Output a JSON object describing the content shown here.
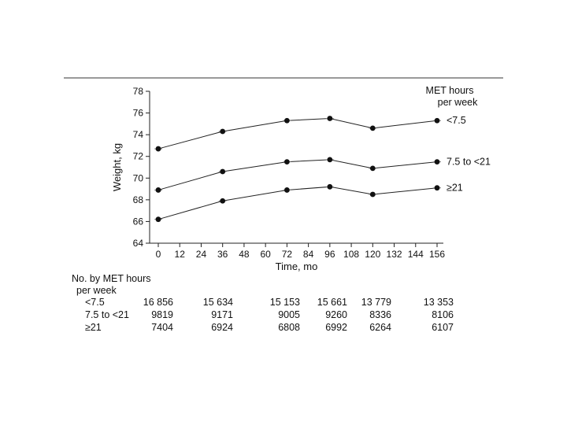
{
  "chart_data": {
    "type": "line",
    "xlabel": "Time, mo",
    "ylabel": "Weight, kg",
    "xlim": [
      0,
      156
    ],
    "ylim": [
      64,
      78
    ],
    "x_ticks": [
      "0",
      "12",
      "24",
      "36",
      "48",
      "60",
      "72",
      "84",
      "96",
      "108",
      "120",
      "132",
      "144",
      "156"
    ],
    "y_ticks": [
      "64",
      "66",
      "68",
      "70",
      "72",
      "74",
      "76",
      "78"
    ],
    "x": [
      0,
      36,
      72,
      96,
      120,
      156
    ],
    "legend_title": [
      "MET hours",
      "per week"
    ],
    "grid": false,
    "series": [
      {
        "name": "<7.5",
        "values": [
          72.7,
          74.3,
          75.3,
          75.5,
          74.6,
          75.3
        ]
      },
      {
        "name": "7.5 to <21",
        "values": [
          68.9,
          70.6,
          71.5,
          71.7,
          70.9,
          71.5
        ]
      },
      {
        "name": "≥21",
        "values": [
          66.2,
          67.9,
          68.9,
          69.2,
          68.5,
          69.1
        ]
      }
    ]
  },
  "at_risk_table": {
    "header": [
      "No. by MET hours",
      "per week"
    ],
    "rows": [
      {
        "label": "<7.5",
        "values": [
          "16 856",
          "15 634",
          "15 153",
          "15 661",
          "13 779",
          "13 353"
        ]
      },
      {
        "label": "7.5 to <21",
        "values": [
          "9819",
          "9171",
          "9005",
          "9260",
          "8336",
          "8106"
        ]
      },
      {
        "label": "≥21",
        "values": [
          "7404",
          "6924",
          "6808",
          "6992",
          "6264",
          "6107"
        ]
      }
    ]
  }
}
